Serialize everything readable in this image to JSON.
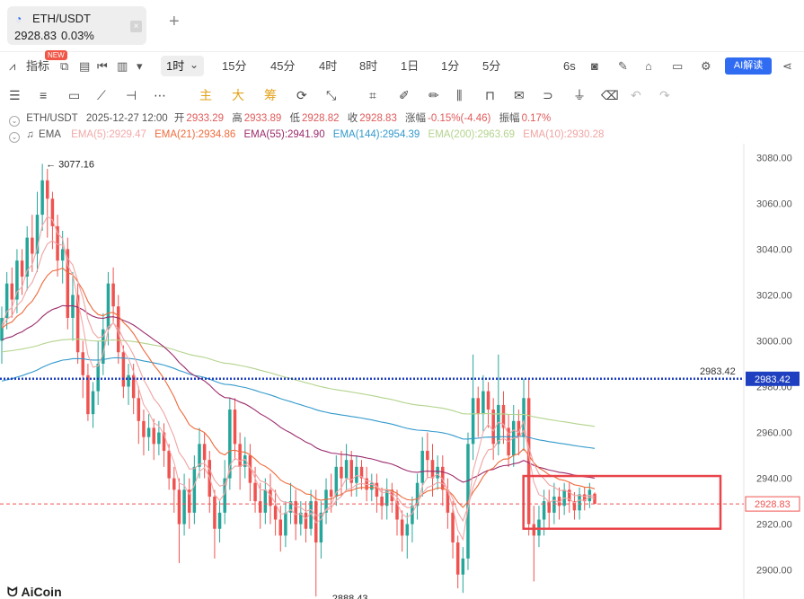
{
  "tab": {
    "title": "ETH/USDT",
    "price": "2928.83",
    "change_pct": "0.03%",
    "close_glyph": "×",
    "add_glyph": "+"
  },
  "toolbar": {
    "indicators_label": "指标",
    "new_badge": "NEW",
    "active_timeframe": "1时",
    "timeframes": [
      "15分",
      "45分",
      "4时",
      "8时",
      "1日",
      "1分",
      "5分"
    ],
    "refresh_label": "6s",
    "ai_label": "AI解读"
  },
  "drawing_tools": {
    "main_label": "主",
    "large_label": "大",
    "chip_label": "筹"
  },
  "info": {
    "symbol": "ETH/USDT",
    "datetime": "2025-12-27 12:00",
    "open_label": "开",
    "open": "2933.29",
    "high_label": "高",
    "high": "2933.89",
    "low_label": "低",
    "low": "2928.82",
    "close_label": "收",
    "close": "2928.83",
    "change_label": "涨幅",
    "change": "-0.15%(-4.46)",
    "amp_label": "振幅",
    "amp": "0.17%"
  },
  "ema_legend": {
    "label": "EMA",
    "items": [
      {
        "text": "EMA(5):2929.47",
        "color": "#f2a9a9"
      },
      {
        "text": "EMA(21):2934.86",
        "color": "#ef6a3a"
      },
      {
        "text": "EMA(55):2941.90",
        "color": "#9b2a6b"
      },
      {
        "text": "EMA(144):2954.39",
        "color": "#3399cc"
      },
      {
        "text": "EMA(200):2963.69",
        "color": "#b3d38c"
      },
      {
        "text": "EMA(10):2930.28",
        "color": "#f0a3a3"
      }
    ]
  },
  "colors": {
    "up": "#26a69a",
    "down": "#ef5350",
    "marked_line": "#1e3fbf",
    "current_price": "#ef5350",
    "highlight_box": "#e8444a"
  },
  "watermark": "AiCoin",
  "chart_data": {
    "type": "candlestick",
    "interval": "1h",
    "y_axis_labels": [
      "3080.00",
      "3060.00",
      "3040.00",
      "3020.00",
      "3000.00",
      "2980.00",
      "2960.00",
      "2940.00",
      "2920.00",
      "2900.00"
    ],
    "ylim": [
      2894,
      3086
    ],
    "annotations": {
      "high": "3077.16",
      "low": "2888.43",
      "marked_line": "2983.42",
      "current_price": "2928.83"
    },
    "candles": [
      [
        3000,
        3010,
        2990,
        3015
      ],
      [
        3010,
        3025,
        3005,
        3030
      ],
      [
        3025,
        3018,
        3010,
        3032
      ],
      [
        3018,
        3035,
        3012,
        3040
      ],
      [
        3035,
        3028,
        3020,
        3040
      ],
      [
        3028,
        3045,
        3022,
        3050
      ],
      [
        3045,
        3038,
        3030,
        3055
      ],
      [
        3038,
        3055,
        3030,
        3065
      ],
      [
        3055,
        3070,
        3048,
        3077.16
      ],
      [
        3070,
        3062,
        3045,
        3075
      ],
      [
        3062,
        3050,
        3040,
        3065
      ],
      [
        3050,
        3035,
        3028,
        3055
      ],
      [
        3035,
        3040,
        3025,
        3048
      ],
      [
        3040,
        3010,
        3005,
        3045
      ],
      [
        3010,
        3020,
        3000,
        3030
      ],
      [
        3020,
        2995,
        2990,
        3025
      ],
      [
        2995,
        2985,
        2975,
        3000
      ],
      [
        2985,
        2968,
        2965,
        2990
      ],
      [
        2968,
        2978,
        2962,
        2982
      ],
      [
        2978,
        2990,
        2972,
        3000
      ],
      [
        2990,
        3005,
        2985,
        3012
      ],
      [
        3005,
        3025,
        2998,
        3030
      ],
      [
        3025,
        3015,
        3008,
        3032
      ],
      [
        3015,
        2995,
        2990,
        3020
      ],
      [
        2995,
        2980,
        2975,
        2998
      ],
      [
        2980,
        2985,
        2972,
        2990
      ],
      [
        2985,
        2975,
        2968,
        2990
      ],
      [
        2975,
        2965,
        2955,
        2980
      ],
      [
        2965,
        2958,
        2950,
        2970
      ],
      [
        2958,
        2962,
        2952,
        2968
      ],
      [
        2962,
        2955,
        2948,
        2966
      ],
      [
        2955,
        2960,
        2950,
        2965
      ],
      [
        2960,
        2952,
        2945,
        2964
      ],
      [
        2952,
        2940,
        2935,
        2955
      ],
      [
        2940,
        2935,
        2925,
        2945
      ],
      [
        2935,
        2920,
        2903,
        2940
      ],
      [
        2920,
        2935,
        2915,
        2942
      ],
      [
        2935,
        2925,
        2918,
        2940
      ],
      [
        2925,
        2945,
        2920,
        2950
      ],
      [
        2945,
        2955,
        2940,
        2962
      ],
      [
        2955,
        2948,
        2940,
        2960
      ],
      [
        2948,
        2932,
        2925,
        2952
      ],
      [
        2932,
        2918,
        2905,
        2935
      ],
      [
        2918,
        2925,
        2912,
        2930
      ],
      [
        2925,
        2940,
        2920,
        2948
      ],
      [
        2940,
        2970,
        2935,
        2975
      ],
      [
        2970,
        2955,
        2948,
        2975
      ],
      [
        2955,
        2945,
        2935,
        2960
      ],
      [
        2945,
        2950,
        2940,
        2958
      ],
      [
        2950,
        2938,
        2930,
        2955
      ],
      [
        2938,
        2930,
        2925,
        2945
      ],
      [
        2930,
        2925,
        2918,
        2938
      ],
      [
        2925,
        2935,
        2920,
        2940
      ],
      [
        2935,
        2928,
        2920,
        2942
      ],
      [
        2928,
        2922,
        2915,
        2935
      ],
      [
        2922,
        2915,
        2908,
        2928
      ],
      [
        2915,
        2925,
        2910,
        2930
      ],
      [
        2925,
        2930,
        2920,
        2938
      ],
      [
        2930,
        2920,
        2913,
        2935
      ],
      [
        2920,
        2925,
        2915,
        2930
      ],
      [
        2925,
        2918,
        2912,
        2930
      ],
      [
        2918,
        2930,
        2915,
        2935
      ],
      [
        2930,
        2912,
        2888.43,
        2935
      ],
      [
        2912,
        2925,
        2905,
        2930
      ],
      [
        2925,
        2935,
        2920,
        2940
      ],
      [
        2935,
        2932,
        2925,
        2942
      ],
      [
        2932,
        2945,
        2928,
        2950
      ],
      [
        2945,
        2940,
        2932,
        2952
      ],
      [
        2940,
        2948,
        2935,
        2955
      ],
      [
        2948,
        2938,
        2932,
        2952
      ],
      [
        2938,
        2945,
        2932,
        2950
      ],
      [
        2945,
        2940,
        2935,
        2948
      ],
      [
        2940,
        2935,
        2930,
        2945
      ],
      [
        2935,
        2938,
        2930,
        2942
      ],
      [
        2938,
        2932,
        2925,
        2942
      ],
      [
        2932,
        2928,
        2922,
        2936
      ],
      [
        2928,
        2935,
        2922,
        2940
      ],
      [
        2935,
        2930,
        2925,
        2938
      ],
      [
        2930,
        2922,
        2915,
        2935
      ],
      [
        2922,
        2915,
        2908,
        2926
      ],
      [
        2915,
        2920,
        2905,
        2925
      ],
      [
        2920,
        2928,
        2912,
        2932
      ],
      [
        2928,
        2938,
        2922,
        2942
      ],
      [
        2938,
        2952,
        2932,
        2958
      ],
      [
        2952,
        2948,
        2940,
        2960
      ],
      [
        2948,
        2940,
        2932,
        2955
      ],
      [
        2940,
        2945,
        2935,
        2950
      ],
      [
        2945,
        2935,
        2928,
        2950
      ],
      [
        2935,
        2925,
        2918,
        2940
      ],
      [
        2925,
        2912,
        2905,
        2930
      ],
      [
        2912,
        2898,
        2892,
        2915
      ],
      [
        2898,
        2905,
        2890,
        2910
      ],
      [
        2905,
        2955,
        2900,
        2960
      ],
      [
        2955,
        2975,
        2948,
        2994
      ],
      [
        2975,
        2968,
        2958,
        2980
      ],
      [
        2968,
        2978,
        2960,
        2985
      ],
      [
        2978,
        2970,
        2962,
        2982
      ],
      [
        2970,
        2955,
        2948,
        2975
      ],
      [
        2955,
        2972,
        2950,
        2994
      ],
      [
        2972,
        2962,
        2955,
        2978
      ],
      [
        2962,
        2950,
        2945,
        2968
      ],
      [
        2950,
        2965,
        2945,
        2972
      ],
      [
        2965,
        2958,
        2950,
        2970
      ],
      [
        2958,
        2975,
        2952,
        2983.42
      ],
      [
        2975,
        2920,
        2915,
        2983.42
      ],
      [
        2920,
        2915,
        2895,
        2928
      ],
      [
        2915,
        2922,
        2910,
        2928
      ],
      [
        2922,
        2930,
        2915,
        2935
      ],
      [
        2930,
        2925,
        2918,
        2935
      ],
      [
        2925,
        2932,
        2920,
        2938
      ],
      [
        2932,
        2928,
        2922,
        2936
      ],
      [
        2928,
        2935,
        2924,
        2938
      ],
      [
        2935,
        2930,
        2925,
        2938
      ],
      [
        2930,
        2926,
        2922,
        2934
      ],
      [
        2926,
        2933,
        2922,
        2936
      ],
      [
        2933,
        2930,
        2926,
        2936
      ],
      [
        2930,
        2935,
        2927,
        2938
      ],
      [
        2933.29,
        2928.83,
        2928.82,
        2933.89
      ]
    ],
    "ema_end_values": {
      "EMA(5)": 2929.47,
      "EMA(10)": 2930.28,
      "EMA(21)": 2934.86,
      "EMA(55)": 2941.9,
      "EMA(144)": 2954.39,
      "EMA(200)": 2963.69
    }
  }
}
